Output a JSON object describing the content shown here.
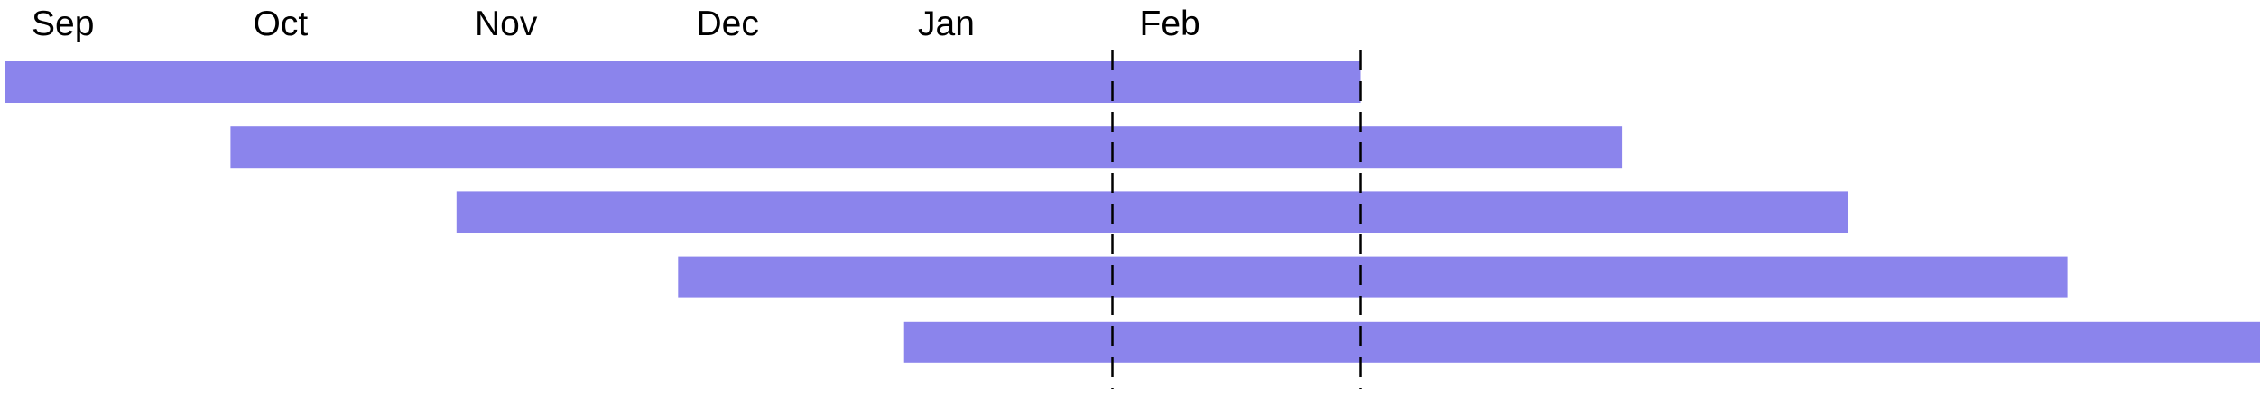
{
  "chart_data": {
    "type": "bar",
    "orientation": "horizontal",
    "title": "",
    "xlabel": "",
    "ylabel": "",
    "x_ticks": [
      "Sep",
      "Oct",
      "Nov",
      "Dec",
      "Jan",
      "Feb"
    ],
    "bars": [
      {
        "start": 0.0,
        "end": 6.12
      },
      {
        "start": 1.02,
        "end": 7.3
      },
      {
        "start": 2.04,
        "end": 8.32
      },
      {
        "start": 3.04,
        "end": 9.31
      },
      {
        "start": 4.06,
        "end": 10.34
      }
    ],
    "reference_lines": [
      {
        "x": 5.0,
        "style": "dashed"
      },
      {
        "x": 6.12,
        "style": "dashed"
      }
    ],
    "x_unit": "months from start of Sep",
    "grid": false,
    "legend": "none",
    "colors": {
      "bar": "#8b84ec",
      "reference_line": "#000000",
      "text": "#000000"
    }
  }
}
